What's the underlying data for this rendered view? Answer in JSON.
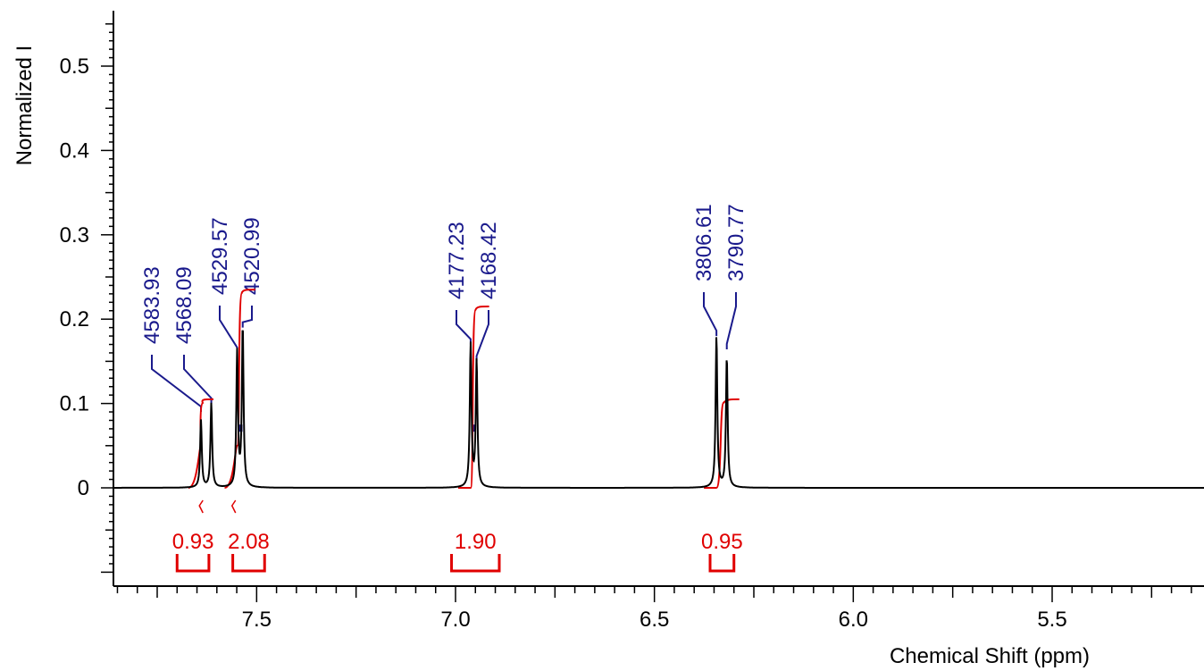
{
  "chart_data": {
    "type": "line",
    "xlabel": "Chemical Shift (ppm)",
    "ylabel": "Normalized I",
    "x_reversed": true,
    "xlim": [
      7.89,
      4.9
    ],
    "ylim": [
      -0.12,
      0.56
    ],
    "x_ticks": [
      {
        "value": 7.5,
        "label": "7.5"
      },
      {
        "value": 7.0,
        "label": "7.0"
      },
      {
        "value": 6.5,
        "label": "6.5"
      },
      {
        "value": 6.0,
        "label": "6.0"
      },
      {
        "value": 5.5,
        "label": "5.5"
      }
    ],
    "y_ticks": [
      {
        "value": 0,
        "label": "0"
      },
      {
        "value": 0.1,
        "label": "0.1"
      },
      {
        "value": 0.2,
        "label": "0.2"
      },
      {
        "value": 0.3,
        "label": "0.3"
      },
      {
        "value": 0.4,
        "label": "0.4"
      },
      {
        "value": 0.5,
        "label": "0.5"
      }
    ],
    "peaks": [
      {
        "ppm": 7.64,
        "height": 0.08,
        "label": "4583.93"
      },
      {
        "ppm": 7.614,
        "height": 0.1,
        "label": "4568.09"
      },
      {
        "ppm": 7.549,
        "height": 0.16,
        "label": "4529.57"
      },
      {
        "ppm": 7.535,
        "height": 0.19,
        "label": "4520.99"
      },
      {
        "ppm": 6.962,
        "height": 0.17,
        "label": "4177.23"
      },
      {
        "ppm": 6.947,
        "height": 0.15,
        "label": "4168.42"
      },
      {
        "ppm": 6.344,
        "height": 0.18,
        "label": "3806.61"
      },
      {
        "ppm": 6.318,
        "height": 0.155,
        "label": "3790.77"
      }
    ],
    "peak_labels": {
      "color": "#1a1a8c",
      "groups": [
        {
          "labels": [
            "4583.93",
            "4568.09",
            "4529.57",
            "4520.99"
          ],
          "peak_ppm": [
            7.64,
            7.614,
            7.549,
            7.535
          ]
        },
        {
          "labels": [
            "4177.23",
            "4168.42"
          ],
          "peak_ppm": [
            6.962,
            6.947
          ]
        },
        {
          "labels": [
            "3806.61",
            "3790.77"
          ],
          "peak_ppm": [
            6.344,
            6.318
          ]
        }
      ]
    },
    "integrals": [
      {
        "from": 7.7,
        "to": 7.62,
        "value": "0.93",
        "curve_start": 0.05,
        "curve_end": 0.105
      },
      {
        "from": 7.56,
        "to": 7.48,
        "value": "2.08",
        "curve_start": 0.05,
        "curve_end": 0.235
      },
      {
        "from": 7.01,
        "to": 6.89,
        "value": "1.90",
        "curve_start": 0.0,
        "curve_end": 0.215
      },
      {
        "from": 6.36,
        "to": 6.3,
        "value": "0.95",
        "curve_start": 0.0,
        "curve_end": 0.105
      }
    ],
    "colors": {
      "spectrum": "#000000",
      "integral": "#e00000",
      "peak_label": "#1a1a8c",
      "axis": "#000000"
    }
  }
}
